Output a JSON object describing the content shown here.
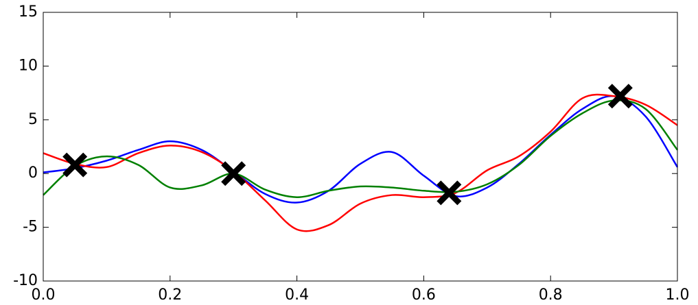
{
  "chart_data": {
    "type": "line",
    "x": [
      0,
      0.05,
      0.1,
      0.15,
      0.2,
      0.25,
      0.3,
      0.35,
      0.4,
      0.45,
      0.5,
      0.55,
      0.6,
      0.65,
      0.7,
      0.75,
      0.8,
      0.85,
      0.9,
      0.95,
      1.0
    ],
    "series": [
      {
        "color": "#0000ff",
        "values": [
          0.1,
          0.5,
          1.2,
          2.2,
          3.0,
          2.2,
          0.2,
          -1.9,
          -2.7,
          -1.6,
          0.9,
          2.0,
          -0.2,
          -2.1,
          -1.3,
          0.9,
          3.6,
          6.0,
          7.2,
          5.3,
          0.6
        ]
      },
      {
        "color": "#ff0000",
        "values": [
          1.9,
          0.9,
          0.6,
          1.9,
          2.6,
          2.0,
          0.2,
          -2.5,
          -5.2,
          -4.8,
          -2.8,
          -2.0,
          -2.2,
          -1.8,
          0.3,
          1.6,
          3.9,
          7.0,
          7.2,
          6.4,
          4.5
        ]
      },
      {
        "color": "#008000",
        "values": [
          -2.0,
          0.7,
          1.6,
          0.8,
          -1.3,
          -1.1,
          0.0,
          -1.5,
          -2.2,
          -1.6,
          -1.2,
          -1.3,
          -1.6,
          -1.7,
          -1.0,
          0.8,
          3.5,
          5.6,
          6.8,
          6.0,
          2.2
        ]
      }
    ],
    "markers": {
      "color": "#000000",
      "x": [
        0.05,
        0.3,
        0.64,
        0.91
      ],
      "y": [
        0.8,
        0.0,
        -1.8,
        7.2
      ]
    },
    "xlim": [
      0,
      1.0
    ],
    "xticks": [
      {
        "value": 0,
        "label": "0.0"
      },
      0.2,
      0.4,
      0.6,
      0.8,
      {
        "value": 1.0,
        "label": "1.0"
      }
    ],
    "ylim": [
      -10,
      15
    ],
    "yticks": [
      -10,
      -5,
      0,
      5,
      10,
      15
    ],
    "grid": false
  }
}
